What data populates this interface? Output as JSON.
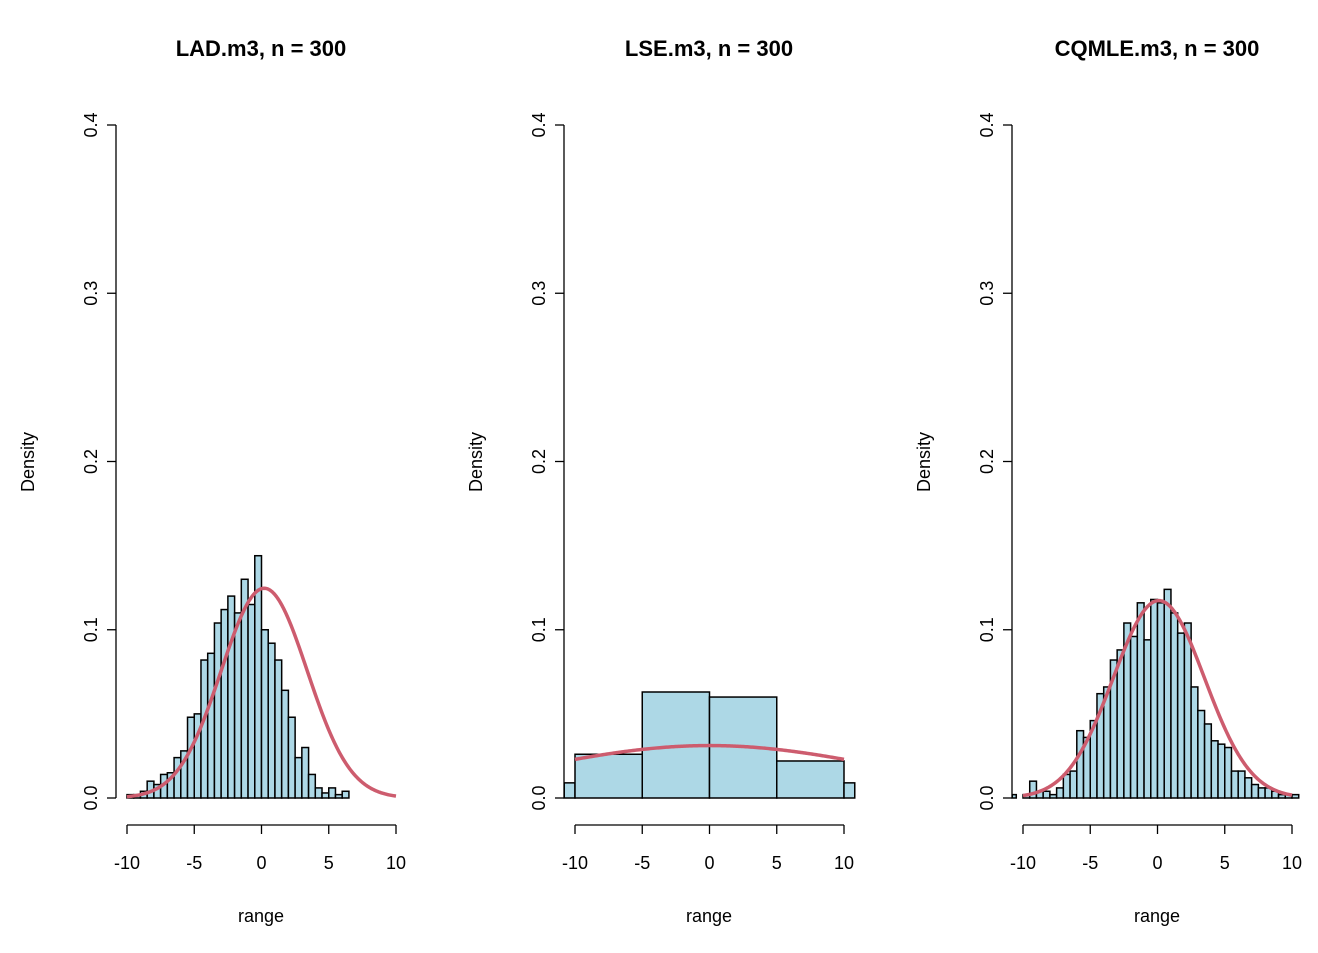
{
  "colors": {
    "bar_fill": "#add8e6",
    "bar_stroke": "#000000",
    "curve": "#cd5c6e",
    "axis": "#000000"
  },
  "chart_data": [
    {
      "type": "bar",
      "title": "LAD.m3, n = 300",
      "xlabel": "range",
      "ylabel": "Density",
      "xlim": [
        -10.8,
        10.8
      ],
      "ylim": [
        0,
        0.4
      ],
      "xticks": [
        -10,
        -5,
        0,
        5,
        10
      ],
      "yticks": [
        0.0,
        0.1,
        0.2,
        0.3,
        0.4
      ],
      "xtick_labels": [
        "-10",
        "-5",
        "0",
        "5",
        "10"
      ],
      "ytick_labels": [
        "0.0",
        "0.1",
        "0.2",
        "0.3",
        "0.4"
      ],
      "bin_start": -10,
      "bin_width": 0.5,
      "densities": [
        0.002,
        0.002,
        0.004,
        0.01,
        0.008,
        0.014,
        0.015,
        0.024,
        0.028,
        0.048,
        0.05,
        0.082,
        0.086,
        0.104,
        0.112,
        0.12,
        0.11,
        0.13,
        0.115,
        0.144,
        0.1,
        0.092,
        0.082,
        0.064,
        0.048,
        0.024,
        0.03,
        0.014,
        0.006,
        0.003,
        0.006,
        0.002,
        0.004
      ],
      "curve": {
        "type": "normal",
        "mean": 0.2,
        "sd": 3.2,
        "x_range": [
          -10,
          10
        ]
      }
    },
    {
      "type": "bar",
      "title": "LSE.m3, n = 300",
      "xlabel": "range",
      "ylabel": "Density",
      "xlim": [
        -10.8,
        10.8
      ],
      "ylim": [
        0,
        0.4
      ],
      "xticks": [
        -10,
        -5,
        0,
        5,
        10
      ],
      "yticks": [
        0.0,
        0.1,
        0.2,
        0.3,
        0.4
      ],
      "xtick_labels": [
        "-10",
        "-5",
        "0",
        "5",
        "10"
      ],
      "ytick_labels": [
        "0.0",
        "0.1",
        "0.2",
        "0.3",
        "0.4"
      ],
      "bins": [
        {
          "x0": -15,
          "x1": -10,
          "density": 0.009
        },
        {
          "x0": -10,
          "x1": -5,
          "density": 0.026
        },
        {
          "x0": -5,
          "x1": 0,
          "density": 0.063
        },
        {
          "x0": 0,
          "x1": 5,
          "density": 0.06
        },
        {
          "x0": 5,
          "x1": 10,
          "density": 0.022
        },
        {
          "x0": 10,
          "x1": 15,
          "density": 0.009
        }
      ],
      "curve": {
        "type": "normal",
        "mean": 0,
        "sd": 12.8,
        "x_range": [
          -10,
          10
        ]
      }
    },
    {
      "type": "bar",
      "title": "CQMLE.m3, n = 300",
      "xlabel": "range",
      "ylabel": "Density",
      "xlim": [
        -10.8,
        10.8
      ],
      "ylim": [
        0,
        0.4
      ],
      "xticks": [
        -10,
        -5,
        0,
        5,
        10
      ],
      "yticks": [
        0.0,
        0.1,
        0.2,
        0.3,
        0.4
      ],
      "xtick_labels": [
        "-10",
        "-5",
        "0",
        "5",
        "10"
      ],
      "ytick_labels": [
        "0.0",
        "0.1",
        "0.2",
        "0.3",
        "0.4"
      ],
      "bin_start": -11,
      "bin_width": 0.5,
      "densities": [
        0.002,
        0.0,
        0.002,
        0.01,
        0.004,
        0.004,
        0.002,
        0.006,
        0.014,
        0.016,
        0.04,
        0.036,
        0.046,
        0.062,
        0.066,
        0.082,
        0.088,
        0.104,
        0.096,
        0.116,
        0.094,
        0.118,
        0.116,
        0.124,
        0.11,
        0.098,
        0.104,
        0.066,
        0.052,
        0.044,
        0.034,
        0.032,
        0.03,
        0.016,
        0.016,
        0.012,
        0.008,
        0.006,
        0.006,
        0.004,
        0.002,
        0.002,
        0.002
      ],
      "curve": {
        "type": "normal",
        "mean": 0.1,
        "sd": 3.4,
        "x_range": [
          -10,
          10
        ]
      }
    }
  ]
}
